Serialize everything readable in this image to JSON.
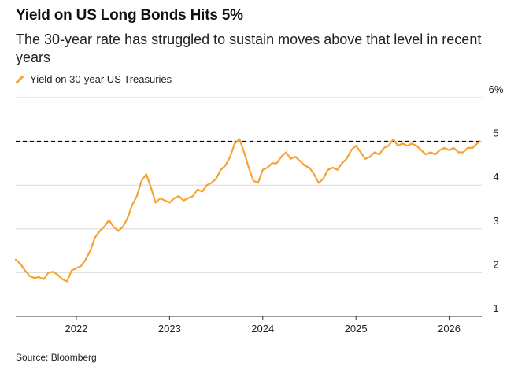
{
  "header": {
    "title": "Yield on US Long Bonds Hits 5%",
    "subtitle": "The 30-year rate has struggled to sustain moves above that level in recent years"
  },
  "legend": {
    "label": "Yield on 30-year US Treasuries"
  },
  "footer": {
    "source": "Source: Bloomberg"
  },
  "colors": {
    "series": "#f7a233",
    "reference": "#000000",
    "grid": "#d9d9d9"
  },
  "chart_data": {
    "type": "line",
    "title": "Yield on US Long Bonds Hits 5%",
    "subtitle": "The 30-year rate has struggled to sustain moves above that level in recent years",
    "xlabel": "",
    "ylabel": "",
    "xlim": [
      2021.35,
      2026.35
    ],
    "ylim": [
      1,
      6
    ],
    "x_ticks": [
      2022,
      2023,
      2024,
      2025,
      2026
    ],
    "x_tick_labels": [
      "2022",
      "2023",
      "2024",
      "2025",
      "2026"
    ],
    "y_ticks": [
      1,
      2,
      3,
      4,
      5,
      6
    ],
    "y_tick_labels": [
      "1",
      "2",
      "3",
      "4",
      "5",
      "6%"
    ],
    "gridlines": "horizontal",
    "reference_line": {
      "value": 5,
      "style": "dashed"
    },
    "series": [
      {
        "name": "Yield on 30-year US Treasuries",
        "x": [
          2021.35,
          2021.4,
          2021.45,
          2021.5,
          2021.55,
          2021.6,
          2021.65,
          2021.7,
          2021.75,
          2021.8,
          2021.85,
          2021.9,
          2021.95,
          2022.0,
          2022.05,
          2022.1,
          2022.15,
          2022.2,
          2022.25,
          2022.3,
          2022.35,
          2022.4,
          2022.45,
          2022.5,
          2022.55,
          2022.6,
          2022.65,
          2022.7,
          2022.75,
          2022.8,
          2022.85,
          2022.9,
          2022.95,
          2023.0,
          2023.05,
          2023.1,
          2023.15,
          2023.2,
          2023.25,
          2023.3,
          2023.35,
          2023.4,
          2023.45,
          2023.5,
          2023.55,
          2023.6,
          2023.65,
          2023.7,
          2023.75,
          2023.8,
          2023.85,
          2023.9,
          2023.95,
          2024.0,
          2024.05,
          2024.1,
          2024.15,
          2024.2,
          2024.25,
          2024.3,
          2024.35,
          2024.4,
          2024.45,
          2024.5,
          2024.55,
          2024.6,
          2024.65,
          2024.7,
          2024.75,
          2024.8,
          2024.85,
          2024.9,
          2024.95,
          2025.0,
          2025.05,
          2025.1,
          2025.15,
          2025.2,
          2025.25,
          2025.3,
          2025.35,
          2025.4,
          2025.45,
          2025.5,
          2025.55,
          2025.6,
          2025.65,
          2025.7,
          2025.75,
          2025.8,
          2025.85,
          2025.9,
          2025.95,
          2026.0,
          2026.05,
          2026.1,
          2026.15,
          2026.2,
          2026.25,
          2026.3,
          2026.33
        ],
        "values": [
          2.3,
          2.2,
          2.05,
          1.92,
          1.88,
          1.9,
          1.85,
          2.0,
          2.02,
          1.95,
          1.85,
          1.8,
          2.05,
          2.1,
          2.15,
          2.3,
          2.5,
          2.8,
          2.95,
          3.05,
          3.2,
          3.05,
          2.95,
          3.05,
          3.25,
          3.55,
          3.75,
          4.1,
          4.25,
          3.95,
          3.6,
          3.7,
          3.65,
          3.6,
          3.7,
          3.75,
          3.65,
          3.7,
          3.75,
          3.9,
          3.85,
          4.0,
          4.05,
          4.15,
          4.35,
          4.45,
          4.65,
          4.95,
          5.05,
          4.75,
          4.4,
          4.1,
          4.05,
          4.35,
          4.4,
          4.5,
          4.5,
          4.65,
          4.75,
          4.6,
          4.65,
          4.55,
          4.45,
          4.4,
          4.25,
          4.05,
          4.15,
          4.35,
          4.4,
          4.35,
          4.5,
          4.6,
          4.8,
          4.9,
          4.75,
          4.6,
          4.65,
          4.75,
          4.7,
          4.85,
          4.9,
          5.05,
          4.9,
          4.95,
          4.9,
          4.95,
          4.9,
          4.8,
          4.7,
          4.75,
          4.7,
          4.8,
          4.85,
          4.8,
          4.85,
          4.75,
          4.75,
          4.85,
          4.85,
          4.95,
          5.0
        ]
      }
    ]
  }
}
